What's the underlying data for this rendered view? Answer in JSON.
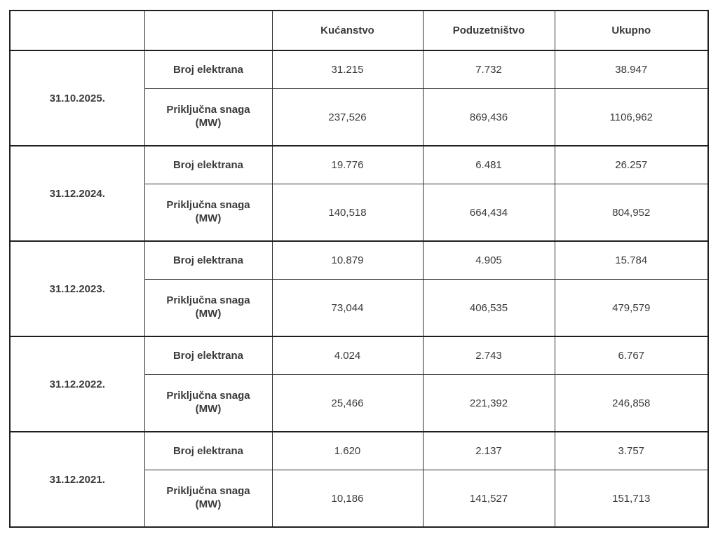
{
  "table": {
    "col_headers": {
      "kucanstvo": "Kućanstvo",
      "poduzetnistvo": "Poduzetništvo",
      "ukupno": "Ukupno"
    },
    "row_labels": {
      "count": "Broj elektrana",
      "power": "Priključna snaga (MW)"
    },
    "sections": [
      {
        "date": "31.10.2025.",
        "count": [
          "31.215",
          "7.732",
          "38.947"
        ],
        "power": [
          "237,526",
          "869,436",
          "1106,962"
        ]
      },
      {
        "date": "31.12.2024.",
        "count": [
          "19.776",
          "6.481",
          "26.257"
        ],
        "power": [
          "140,518",
          "664,434",
          "804,952"
        ]
      },
      {
        "date": "31.12.2023.",
        "count": [
          "10.879",
          "4.905",
          "15.784"
        ],
        "power": [
          "73,044",
          "406,535",
          "479,579"
        ]
      },
      {
        "date": "31.12.2022.",
        "count": [
          "4.024",
          "2.743",
          "6.767"
        ],
        "power": [
          "25,466",
          "221,392",
          "246,858"
        ]
      },
      {
        "date": "31.12.2021.",
        "count": [
          "1.620",
          "2.137",
          "3.757"
        ],
        "power": [
          "10,186",
          "141,527",
          "151,713"
        ]
      }
    ]
  },
  "colors": {
    "border_heavy": "#1f1f1f",
    "border_light": "#2e2e2e",
    "text": "#3b3b3b",
    "background": "#ffffff"
  }
}
